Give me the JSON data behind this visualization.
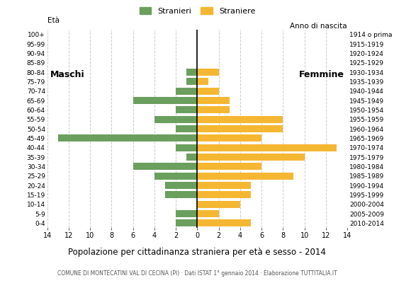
{
  "age_groups_top_to_bottom": [
    "100+",
    "95-99",
    "90-94",
    "85-89",
    "80-84",
    "75-79",
    "70-74",
    "65-69",
    "60-64",
    "55-59",
    "50-54",
    "45-49",
    "40-44",
    "35-39",
    "30-34",
    "25-29",
    "20-24",
    "15-19",
    "10-14",
    "5-9",
    "0-4"
  ],
  "birth_years_top_to_bottom": [
    "1914 o prima",
    "1915-1919",
    "1920-1924",
    "1925-1929",
    "1930-1934",
    "1935-1939",
    "1940-1944",
    "1945-1949",
    "1950-1954",
    "1955-1959",
    "1960-1964",
    "1965-1969",
    "1970-1974",
    "1975-1979",
    "1980-1984",
    "1985-1989",
    "1990-1994",
    "1995-1999",
    "2000-2004",
    "2005-2009",
    "2010-2014"
  ],
  "males_top_to_bottom": [
    0,
    0,
    0,
    0,
    1,
    1,
    2,
    6,
    2,
    4,
    2,
    13,
    2,
    1,
    6,
    4,
    3,
    3,
    0,
    2,
    2
  ],
  "females_top_to_bottom": [
    0,
    0,
    0,
    0,
    2,
    1,
    2,
    3,
    3,
    8,
    8,
    6,
    13,
    10,
    6,
    9,
    5,
    5,
    4,
    2,
    5
  ],
  "male_color": "#6a9f5e",
  "female_color": "#f5b731",
  "background_color": "#ffffff",
  "grid_color": "#cccccc",
  "title": "Popolazione per cittadinanza straniera per età e sesso - 2014",
  "subtitle": "COMUNE DI MONTECATINI VAL DI CECINA (PI) · Dati ISTAT 1° gennaio 2014 · Elaborazione TUTTITALIA.IT",
  "label_eta": "Età",
  "label_anno": "Anno di nascita",
  "label_maschi": "Maschi",
  "label_femmine": "Femmine",
  "legend_stranieri": "Stranieri",
  "legend_straniere": "Straniere",
  "xlim": 14,
  "tick_step": 2
}
